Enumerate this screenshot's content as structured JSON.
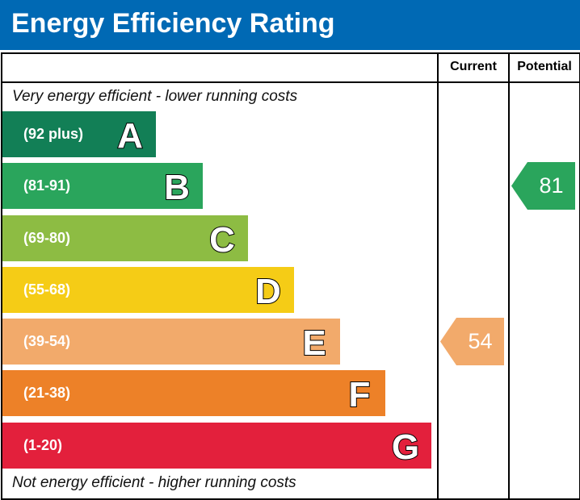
{
  "header": {
    "title": "Energy Efficiency Rating"
  },
  "columns": {
    "current": "Current",
    "potential": "Potential"
  },
  "notes": {
    "top": "Very energy efficient - lower running costs",
    "bottom": "Not energy efficient - higher running costs"
  },
  "chart_data": {
    "type": "bar",
    "title": "Energy Efficiency Rating",
    "bands": [
      {
        "letter": "A",
        "range": "(92 plus)",
        "min": 92,
        "max": 100,
        "color": "#127f56"
      },
      {
        "letter": "B",
        "range": "(81-91)",
        "min": 81,
        "max": 91,
        "color": "#2aa55c"
      },
      {
        "letter": "C",
        "range": "(69-80)",
        "min": 69,
        "max": 80,
        "color": "#8dbc43"
      },
      {
        "letter": "D",
        "range": "(55-68)",
        "min": 55,
        "max": 68,
        "color": "#f5cc16"
      },
      {
        "letter": "E",
        "range": "(39-54)",
        "min": 39,
        "max": 54,
        "color": "#f2aa6b"
      },
      {
        "letter": "F",
        "range": "(21-38)",
        "min": 21,
        "max": 38,
        "color": "#ed8128"
      },
      {
        "letter": "G",
        "range": "(1-20)",
        "min": 1,
        "max": 20,
        "color": "#e3203c"
      }
    ],
    "current": {
      "value": 54,
      "band": "E",
      "color": "#f2aa6b"
    },
    "potential": {
      "value": 81,
      "band": "B",
      "color": "#2aa55c"
    }
  }
}
